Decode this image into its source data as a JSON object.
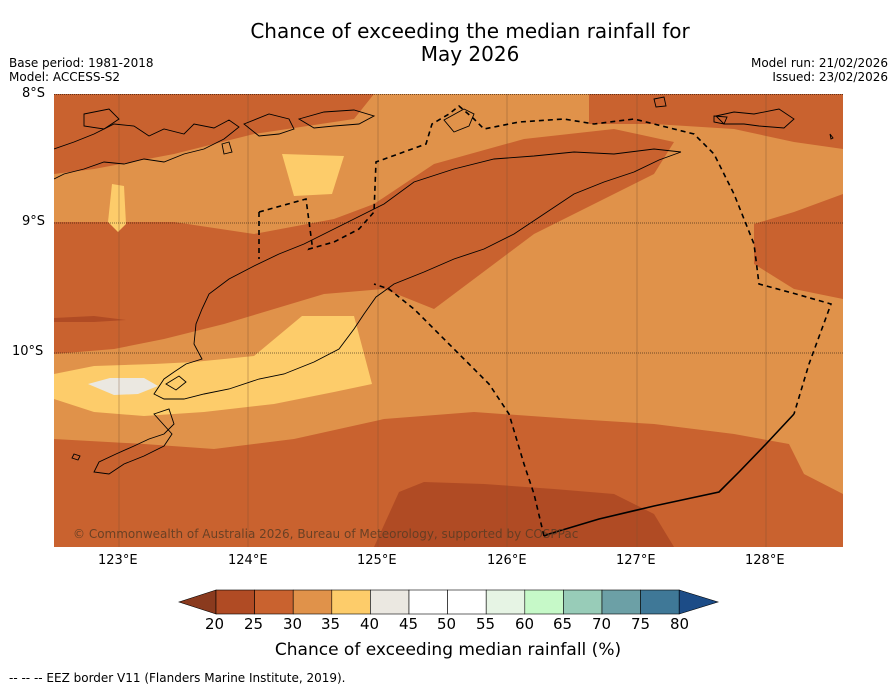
{
  "header": {
    "title_line1": "Chance of exceeding the median rainfall for",
    "title_line2": "May 2026",
    "base_period": "Base period: 1981-2018",
    "model": "Model: ACCESS-S2",
    "model_run": "Model run: 21/02/2026",
    "issued": "Issued: 23/02/2026"
  },
  "map": {
    "lat_labels": [
      "8°S",
      "9°S",
      "10°S"
    ],
    "lon_labels": [
      "123°E",
      "124°E",
      "125°E",
      "126°E",
      "127°E",
      "128°E"
    ],
    "copyright": "© Commonwealth of Australia 2026, Bureau of Meteorology, supported by COSPPac"
  },
  "colorbar": {
    "title": "Chance of exceeding median rainfall (%)",
    "tick_labels": [
      "20",
      "25",
      "30",
      "35",
      "40",
      "45",
      "50",
      "55",
      "60",
      "65",
      "70",
      "75",
      "80"
    ],
    "colors": [
      "#8a3a1e",
      "#b04b24",
      "#c9622f",
      "#e0924a",
      "#fdcc6a",
      "#ebe8e1",
      "#ffffff",
      "#ffffff",
      "#e6f4e4",
      "#c6f9c8",
      "#98ccb8",
      "#6ca0a6",
      "#3f7897",
      "#1c4c87"
    ]
  },
  "footnote": "--  --  -- EEZ border V11 (Flanders Marine Institute, 2019)."
}
